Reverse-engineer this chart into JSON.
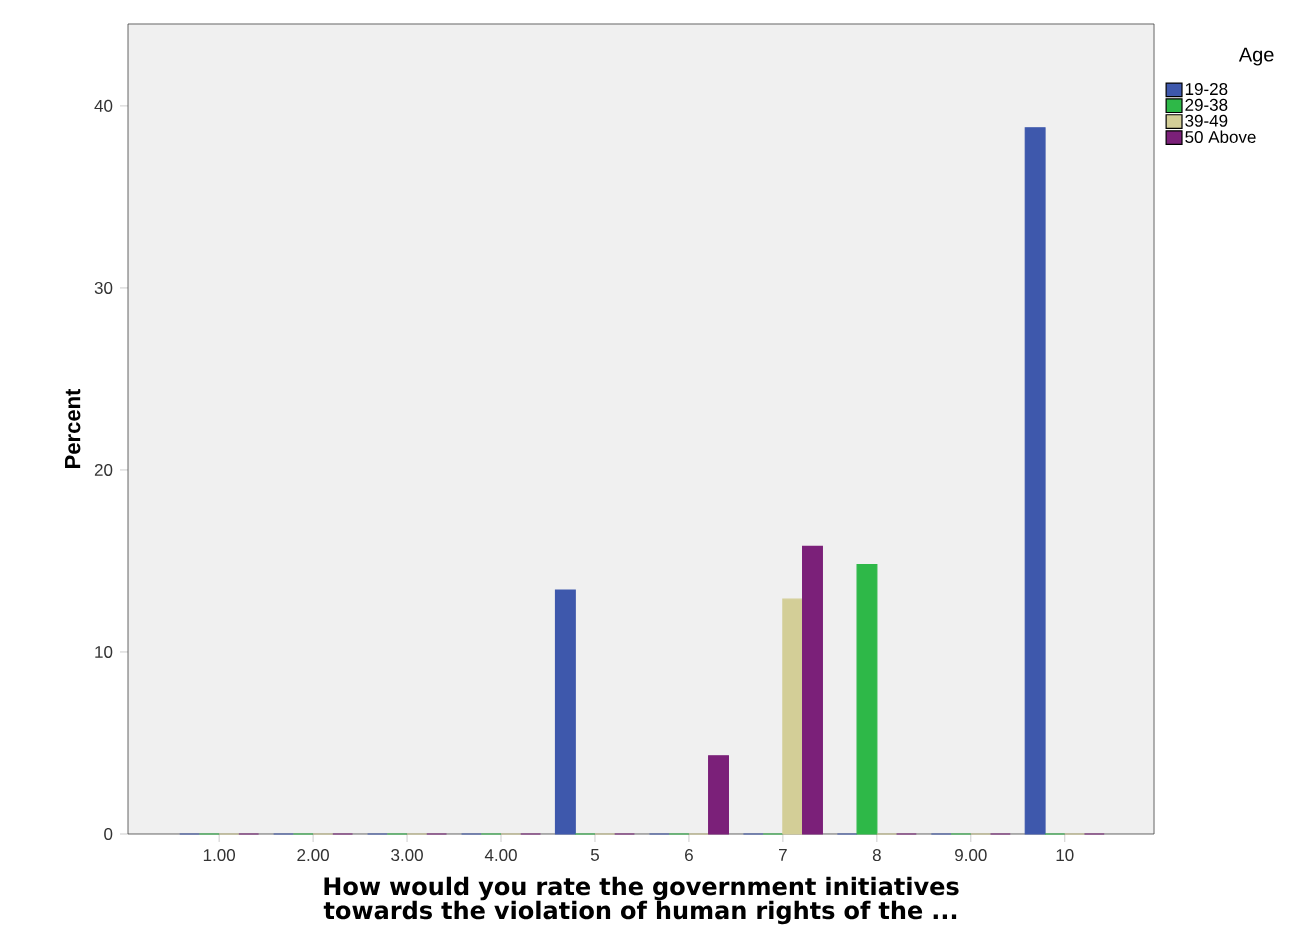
{
  "chart_data": {
    "type": "bar",
    "xlabel": "How would you rate the government initiatives towards the violation of human rights of the ...",
    "ylabel": "Percent",
    "legend_title": "Age",
    "categories": [
      "1.00",
      "2.00",
      "3.00",
      "4.00",
      "5",
      "6",
      "7",
      "8",
      "9.00",
      "10"
    ],
    "series": [
      {
        "name": "19-28",
        "color": "#3e58ac",
        "values": [
          0,
          0,
          0,
          0,
          13.4,
          0,
          0,
          0,
          0,
          38.8
        ]
      },
      {
        "name": "29-38",
        "color": "#2eb848",
        "values": [
          0,
          0,
          0,
          0,
          0,
          0,
          0,
          14.8,
          0,
          0
        ]
      },
      {
        "name": "39-49",
        "color": "#d3ce97",
        "values": [
          0,
          0,
          0,
          0,
          0,
          0,
          12.9,
          0,
          0,
          0
        ]
      },
      {
        "name": "50 Above",
        "color": "#7b2079",
        "values": [
          0,
          0,
          0,
          0,
          0,
          4.3,
          15.8,
          0,
          0,
          0
        ]
      }
    ],
    "ylim": [
      0,
      44.5
    ],
    "yticks": [
      0,
      10,
      20,
      30,
      40
    ],
    "legend": "top right",
    "grid": false
  }
}
